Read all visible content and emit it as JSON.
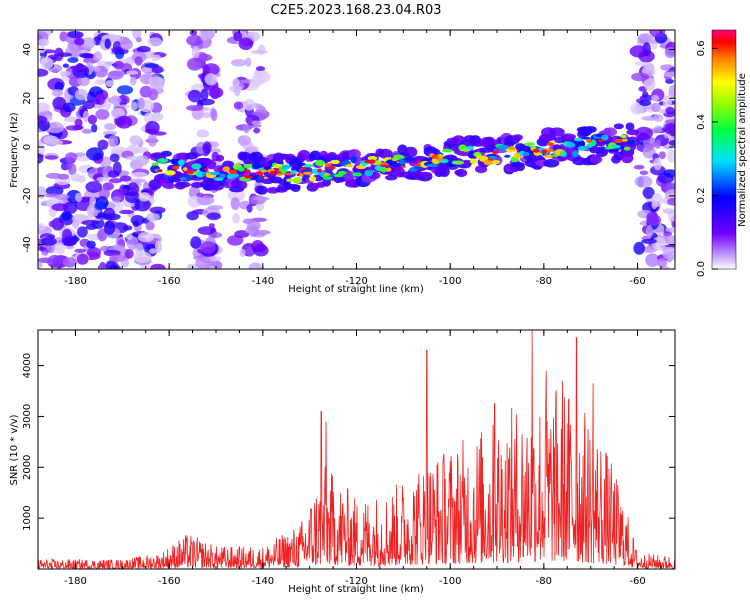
{
  "figure": {
    "title": "C2E5.2023.168.23.04.R03"
  },
  "chart_data": [
    {
      "type": "heatmap",
      "title": "C2E5.2023.168.23.04.R03",
      "xlabel": "Height of straight line (km)",
      "ylabel": "Frequency (Hz)",
      "xlim": [
        -188,
        -52
      ],
      "ylim": [
        -50,
        48
      ],
      "x_ticks": [
        -180,
        -160,
        -140,
        -120,
        -100,
        -80,
        -60
      ],
      "y_ticks": [
        -40,
        -20,
        0,
        20,
        40
      ],
      "colorbar": {
        "label": "Normalized spectral amplitude",
        "range": [
          0,
          0.65
        ],
        "ticks": [
          0.0,
          0.2,
          0.4,
          0.6
        ]
      },
      "ridge": [
        {
          "x": -162,
          "y": -9
        },
        {
          "x": -150,
          "y": -10
        },
        {
          "x": -140,
          "y": -11
        },
        {
          "x": -130,
          "y": -10
        },
        {
          "x": -120,
          "y": -8
        },
        {
          "x": -110,
          "y": -7
        },
        {
          "x": -100,
          "y": -4
        },
        {
          "x": -90,
          "y": -3
        },
        {
          "x": -80,
          "y": -1
        },
        {
          "x": -70,
          "y": 1
        },
        {
          "x": -62,
          "y": 2
        }
      ],
      "grid": false
    },
    {
      "type": "line",
      "xlabel": "Height of straight line (km)",
      "ylabel": "SNR (10 * v/v)",
      "xlim": [
        -188,
        -52
      ],
      "ylim": [
        0,
        4700
      ],
      "x_ticks": [
        -180,
        -160,
        -140,
        -120,
        -100,
        -80,
        -60
      ],
      "y_ticks": [
        1000,
        2000,
        3000,
        4000
      ],
      "color": "#ee2222",
      "envelope": [
        {
          "x": -188,
          "y": 150
        },
        {
          "x": -170,
          "y": 150
        },
        {
          "x": -162,
          "y": 250
        },
        {
          "x": -156,
          "y": 550
        },
        {
          "x": -150,
          "y": 350
        },
        {
          "x": -140,
          "y": 350
        },
        {
          "x": -132,
          "y": 700
        },
        {
          "x": -127,
          "y": 1600
        },
        {
          "x": -120,
          "y": 1100
        },
        {
          "x": -113,
          "y": 1200
        },
        {
          "x": -105,
          "y": 1700
        },
        {
          "x": -97,
          "y": 2000
        },
        {
          "x": -90,
          "y": 2300
        },
        {
          "x": -82,
          "y": 2700
        },
        {
          "x": -75,
          "y": 2800
        },
        {
          "x": -68,
          "y": 2100
        },
        {
          "x": -63,
          "y": 1100
        },
        {
          "x": -60,
          "y": 250
        },
        {
          "x": -52,
          "y": 200
        }
      ],
      "peaks": [
        {
          "x": -127.5,
          "y": 3100
        },
        {
          "x": -126.5,
          "y": 2900
        },
        {
          "x": -105,
          "y": 4300
        },
        {
          "x": -90.5,
          "y": 3250
        },
        {
          "x": -82.5,
          "y": 4700
        },
        {
          "x": -79.5,
          "y": 3900
        },
        {
          "x": -76,
          "y": 3700
        },
        {
          "x": -73,
          "y": 4550
        },
        {
          "x": -69.5,
          "y": 3650
        }
      ]
    }
  ]
}
